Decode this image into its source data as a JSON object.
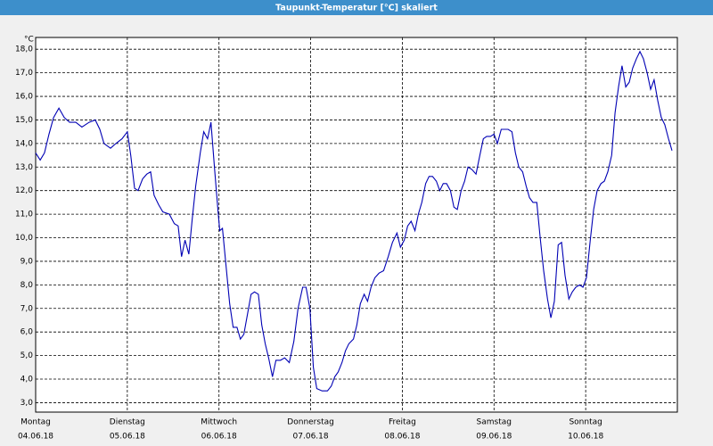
{
  "chart_data": {
    "type": "line",
    "title": "Taupunkt-Temperatur [°C] skaliert",
    "ylabel": "°C",
    "color": "#0000b4",
    "grid": true,
    "xlim": [
      0,
      168
    ],
    "xticks": [
      {
        "value": 0,
        "label": "Montag"
      },
      {
        "value": 24,
        "label": "Dienstag"
      },
      {
        "value": 48,
        "label": "Mittwoch"
      },
      {
        "value": 72,
        "label": "Donnerstag"
      },
      {
        "value": 96,
        "label": "Freitag"
      },
      {
        "value": 120,
        "label": "Samstag"
      },
      {
        "value": 144,
        "label": "Sonntag"
      }
    ],
    "xtick_dates": [
      "04.06.18",
      "05.06.18",
      "06.06.18",
      "07.06.18",
      "08.06.18",
      "09.06.18",
      "10.06.18"
    ],
    "ylim": [
      2.6,
      18.5
    ],
    "yticks": [
      {
        "value": 3,
        "label": "3,0"
      },
      {
        "value": 4,
        "label": "4,0"
      },
      {
        "value": 5,
        "label": "5,0"
      },
      {
        "value": 6,
        "label": "6,0"
      },
      {
        "value": 7,
        "label": "7,0"
      },
      {
        "value": 8,
        "label": "8,0"
      },
      {
        "value": 9,
        "label": "9,0"
      },
      {
        "value": 10,
        "label": "10,0"
      },
      {
        "value": 11,
        "label": "11,0"
      },
      {
        "value": 12,
        "label": "12,0"
      },
      {
        "value": 13,
        "label": "13,0"
      },
      {
        "value": 14,
        "label": "14,0"
      },
      {
        "value": 15,
        "label": "15,0"
      },
      {
        "value": 16,
        "label": "16,0"
      },
      {
        "value": 17,
        "label": "17,0"
      },
      {
        "value": 18,
        "label": "18,0"
      }
    ],
    "x": [
      0,
      1.2,
      2.3,
      3.5,
      4.7,
      6.1,
      7.5,
      8.9,
      10.5,
      12.1,
      14.0,
      15.6,
      16.8,
      17.9,
      19.6,
      21.0,
      22.6,
      24.0,
      24.9,
      25.9,
      26.8,
      28.0,
      29.1,
      30.1,
      31.0,
      32.2,
      33.3,
      35.0,
      36.3,
      37.3,
      38.2,
      39.1,
      40.1,
      41.0,
      41.9,
      43.1,
      44.0,
      45.0,
      45.9,
      46.8,
      47.8,
      48.2,
      48.9,
      49.9,
      50.8,
      51.7,
      52.7,
      53.6,
      54.5,
      55.5,
      56.4,
      57.3,
      58.3,
      59.2,
      60.1,
      61.0,
      62.0,
      62.9,
      64.1,
      65.2,
      66.4,
      67.6,
      68.7,
      69.9,
      70.8,
      71.8,
      72.7,
      73.6,
      75.0,
      76.4,
      77.4,
      78.3,
      79.2,
      80.2,
      81.1,
      82.0,
      83.2,
      84.1,
      85.0,
      86.0,
      86.9,
      87.8,
      88.8,
      89.9,
      91.1,
      92.3,
      93.4,
      94.6,
      95.5,
      96.5,
      97.4,
      98.3,
      99.3,
      100.2,
      101.1,
      102.1,
      103.0,
      103.9,
      104.9,
      105.8,
      106.7,
      107.6,
      108.6,
      109.5,
      110.4,
      111.4,
      112.3,
      113.2,
      114.2,
      115.3,
      116.3,
      117.2,
      118.1,
      119.1,
      120.0,
      120.9,
      121.9,
      122.8,
      123.7,
      124.7,
      125.6,
      126.5,
      127.5,
      128.4,
      129.3,
      130.2,
      131.2,
      132.1,
      133.0,
      134.0,
      134.9,
      135.8,
      136.8,
      137.7,
      138.6,
      139.6,
      140.5,
      141.4,
      142.4,
      143.3,
      144.2,
      145.2,
      146.1,
      147.0,
      148.0,
      148.9,
      149.8,
      150.8,
      151.7,
      152.6,
      153.5,
      154.5,
      155.4,
      156.3,
      157.3,
      158.2,
      159.1,
      160.1,
      161.0,
      161.9,
      162.9,
      163.8,
      164.7,
      165.7,
      166.6
    ],
    "values": [
      13.6,
      13.3,
      13.6,
      14.4,
      15.1,
      15.5,
      15.1,
      14.9,
      14.9,
      14.7,
      14.9,
      15.0,
      14.6,
      14.0,
      13.8,
      14.0,
      14.2,
      14.5,
      13.5,
      12.1,
      12.0,
      12.5,
      12.7,
      12.8,
      11.8,
      11.4,
      11.1,
      11.0,
      10.6,
      10.5,
      9.2,
      9.9,
      9.3,
      10.8,
      12.2,
      13.6,
      14.5,
      14.2,
      14.9,
      13.0,
      11.0,
      10.3,
      10.4,
      8.7,
      7.2,
      6.2,
      6.2,
      5.7,
      5.9,
      6.8,
      7.6,
      7.7,
      7.6,
      6.3,
      5.5,
      4.9,
      4.1,
      4.8,
      4.8,
      4.9,
      4.7,
      5.6,
      7.0,
      7.9,
      7.9,
      7.0,
      4.5,
      3.6,
      3.5,
      3.5,
      3.7,
      4.1,
      4.3,
      4.7,
      5.2,
      5.5,
      5.7,
      6.3,
      7.2,
      7.6,
      7.3,
      7.9,
      8.3,
      8.5,
      8.6,
      9.2,
      9.8,
      10.2,
      9.6,
      9.9,
      10.5,
      10.7,
      10.3,
      11.0,
      11.5,
      12.3,
      12.6,
      12.6,
      12.4,
      12.0,
      12.3,
      12.3,
      12.0,
      11.3,
      11.2,
      12.0,
      12.4,
      13.0,
      12.9,
      12.7,
      13.5,
      14.2,
      14.3,
      14.3,
      14.4,
      14.0,
      14.6,
      14.6,
      14.6,
      14.5,
      13.6,
      13.0,
      12.8,
      12.2,
      11.7,
      11.5,
      11.5,
      10.0,
      8.6,
      7.4,
      6.6,
      7.3,
      9.7,
      9.8,
      8.4,
      7.4,
      7.7,
      7.9,
      8.0,
      7.9,
      8.3,
      9.9,
      11.2,
      12.0,
      12.3,
      12.4,
      12.8,
      13.5,
      15.3,
      16.4,
      17.3,
      16.4,
      16.6,
      17.2,
      17.6,
      17.9,
      17.6,
      17.0,
      16.3,
      16.7,
      15.8,
      15.1,
      14.8,
      14.2,
      13.7
    ]
  }
}
